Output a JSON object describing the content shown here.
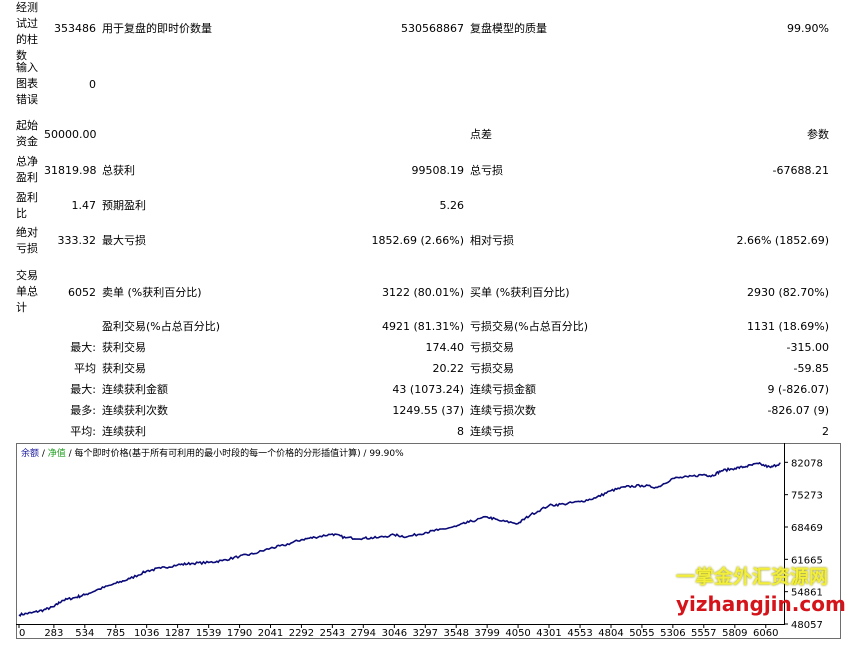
{
  "report": {
    "bars_tested": {
      "label": "经测试过的柱数",
      "value": "353486"
    },
    "ticks_modelled": {
      "label": "用于复盘的即时价数量",
      "value": "530568867"
    },
    "model_quality": {
      "label": "复盘模型的质量",
      "value": "99.90%"
    },
    "chart_errors": {
      "label": "输入图表错误",
      "value": "0"
    },
    "initial_deposit": {
      "label": "起始资金",
      "value": "50000.00"
    },
    "spread": {
      "label": "点差",
      "value": "参数"
    },
    "total_net_profit": {
      "label": "总净盈利",
      "value": "31819.98"
    },
    "gross_profit": {
      "label": "总获利",
      "value": "99508.19"
    },
    "gross_loss": {
      "label": "总亏损",
      "value": "-67688.21"
    },
    "profit_factor": {
      "label": "盈利比",
      "value": "1.47"
    },
    "expected_payoff": {
      "label": "预期盈利",
      "value": "5.26"
    },
    "absolute_drawdown": {
      "label": "绝对亏损",
      "value": "333.32"
    },
    "maximal_drawdown": {
      "label": "最大亏损",
      "value": "1852.69 (2.66%)"
    },
    "relative_drawdown": {
      "label": "相对亏损",
      "value": "2.66% (1852.69)"
    },
    "total_trades": {
      "label": "交易单总计",
      "value": "6052"
    },
    "short_positions": {
      "label": "卖单 (%获利百分比)",
      "value": "3122 (80.01%)"
    },
    "long_positions": {
      "label": "买单 (%获利百分比)",
      "value": "2930 (82.70%)"
    },
    "profit_trades": {
      "label": "盈利交易(%占总百分比)",
      "value": "4921 (81.31%)"
    },
    "loss_trades": {
      "label": "亏损交易(%占总百分比)",
      "value": "1131 (18.69%)"
    },
    "largest": {
      "prefix": "最大:",
      "profit_label": "获利交易",
      "profit_value": "174.40",
      "loss_label": "亏损交易",
      "loss_value": "-315.00"
    },
    "average": {
      "prefix": "平均",
      "profit_label": "获利交易",
      "profit_value": "20.22",
      "loss_label": "亏损交易",
      "loss_value": "-59.85"
    },
    "max_consecutive": {
      "prefix": "最大:",
      "profit_label": "连续获利金额",
      "profit_value": "43 (1073.24)",
      "loss_label": "连续亏损金额",
      "loss_value": "9 (-826.07)"
    },
    "maximal_consecutive": {
      "prefix": "最多:",
      "profit_label": "连续获利次数",
      "profit_value": "1249.55 (37)",
      "loss_label": "连续亏损次数",
      "loss_value": "-826.07 (9)"
    },
    "avg_consecutive": {
      "prefix": "平均:",
      "profit_label": "连续获利",
      "profit_value": "8",
      "loss_label": "连续亏损",
      "loss_value": "2"
    }
  },
  "colors": {
    "balance_line": "#0a0a78",
    "legend_balance": "#1a1a9e",
    "legend_equity": "#1f9e1f",
    "axis": "#000000"
  },
  "watermark": {
    "line1": "一掌金外汇资源网",
    "line2": "yizhangjin.com"
  },
  "chart_data": {
    "type": "line",
    "legend_text": {
      "balance": "余额",
      "sep1": " / ",
      "equity": "净值",
      "rest": " / 每个即时价格(基于所有可利用的最小时段的每一个价格的分形插值计算) / 99.90%"
    },
    "x_ticks": [
      0,
      283,
      534,
      785,
      1036,
      1287,
      1539,
      1790,
      2041,
      2292,
      2543,
      2794,
      3046,
      3297,
      3548,
      3799,
      4050,
      4301,
      4553,
      4804,
      5055,
      5306,
      5557,
      5809,
      6060
    ],
    "y_ticks": [
      48057,
      54861,
      61665,
      68469,
      75273,
      82078
    ],
    "xlim": [
      0,
      6208
    ],
    "ylim": [
      48057,
      85300
    ],
    "series": [
      {
        "x": [
          0,
          100,
          200,
          283,
          350,
          450,
          534,
          650,
          785,
          900,
          1036,
          1150,
          1287,
          1400,
          1539,
          1650,
          1790,
          1900,
          2041,
          2150,
          2292,
          2400,
          2543,
          2650,
          2794,
          2900,
          3046,
          3150,
          3297,
          3400,
          3548,
          3650,
          3799,
          3900,
          4050,
          4150,
          4301,
          4420,
          4553,
          4680,
          4804,
          4920,
          5055,
          5180,
          5306,
          5430,
          5557,
          5620,
          5700,
          5809,
          5900,
          6000,
          6100,
          6180
        ],
        "y": [
          50000,
          50400,
          51000,
          51700,
          53000,
          53600,
          54200,
          55400,
          56600,
          57600,
          59200,
          59800,
          60500,
          60800,
          61000,
          61400,
          62300,
          62800,
          64000,
          64600,
          65800,
          66300,
          67000,
          66200,
          66100,
          66200,
          66800,
          66400,
          67300,
          67800,
          68600,
          69500,
          70600,
          69800,
          69200,
          71000,
          73000,
          73300,
          73800,
          74600,
          76100,
          76900,
          77200,
          76800,
          78700,
          79000,
          79500,
          79200,
          80300,
          80800,
          81200,
          81800,
          81000,
          81900
        ]
      }
    ]
  }
}
